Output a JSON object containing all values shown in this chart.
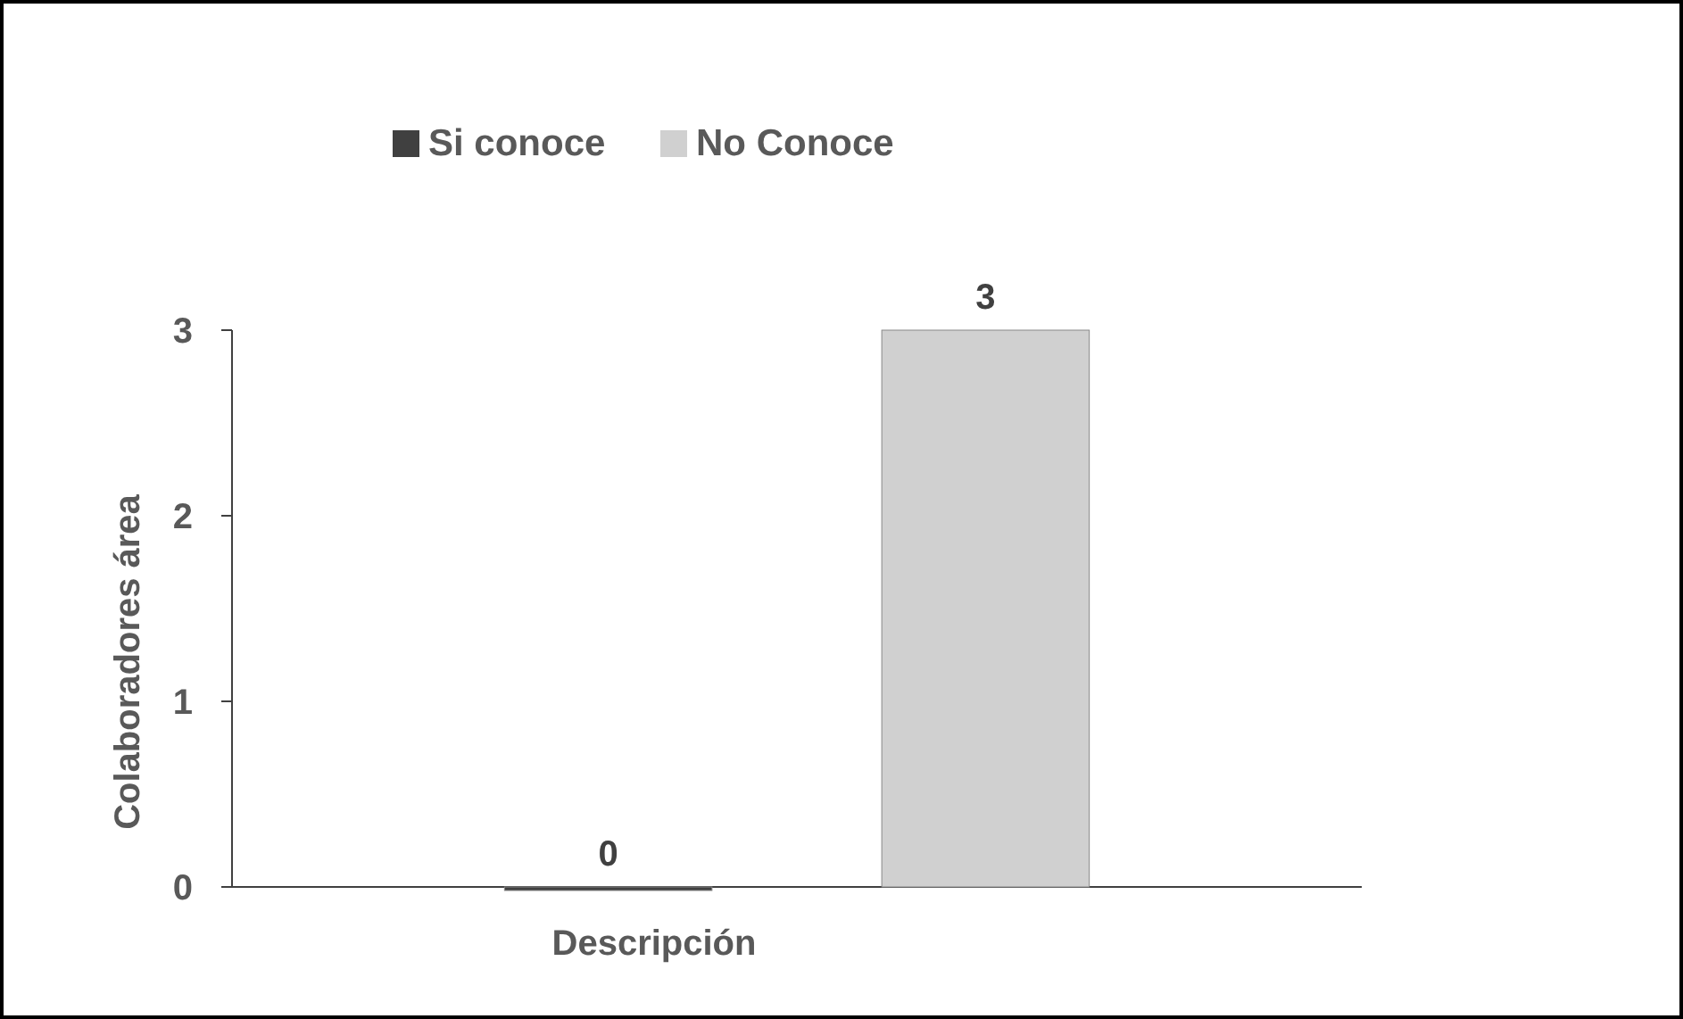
{
  "chart_data": {
    "type": "bar",
    "xlabel": "Descripción",
    "ylabel": "Colaboradores área",
    "categories": [
      null
    ],
    "series": [
      {
        "name": "Si conoce",
        "color": "#404040",
        "values": [
          0
        ]
      },
      {
        "name": "No Conoce",
        "color": "#d0d0d0",
        "values": [
          3
        ]
      }
    ],
    "ylim": [
      0,
      3
    ],
    "yticks": [
      0,
      1,
      2,
      3
    ],
    "data_labels": true,
    "legend": "top",
    "grid": false
  }
}
